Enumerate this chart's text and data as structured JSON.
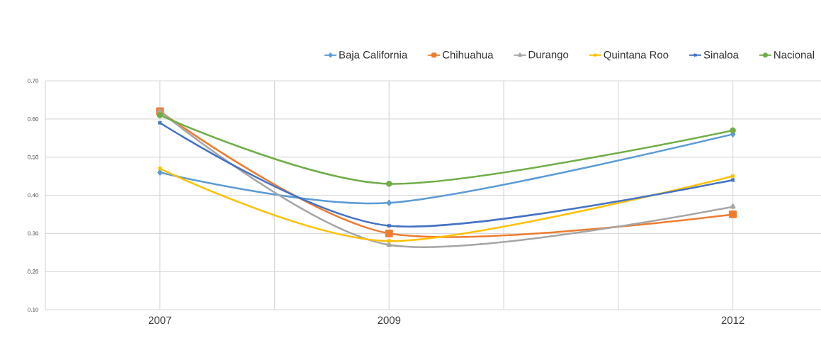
{
  "chart_data": {
    "type": "line",
    "x": [
      2007,
      2009,
      2012
    ],
    "series": [
      {
        "name": "Baja California",
        "color": "#5b9bd5",
        "marker": "diamond",
        "values": [
          0.46,
          0.38,
          0.56
        ]
      },
      {
        "name": "Chihuahua",
        "color": "#ed7d31",
        "marker": "square",
        "values": [
          0.62,
          0.3,
          0.35
        ]
      },
      {
        "name": "Durango",
        "color": "#a5a5a5",
        "marker": "triangle",
        "values": [
          0.62,
          0.27,
          0.37
        ]
      },
      {
        "name": "Quintana Roo",
        "color": "#ffc000",
        "marker": "cross",
        "values": [
          0.47,
          0.28,
          0.45
        ]
      },
      {
        "name": "Sinaloa",
        "color": "#4472c4",
        "marker": "cross",
        "values": [
          0.59,
          0.32,
          0.44
        ]
      },
      {
        "name": "Nacional",
        "color": "#70ad47",
        "marker": "circle",
        "values": [
          0.61,
          0.43,
          0.57
        ]
      }
    ],
    "xlim": [
      2006,
      2012.8
    ],
    "xticks": [
      {
        "value": 2006,
        "label": null
      },
      2007,
      {
        "value": 2008,
        "label": null
      },
      2009,
      {
        "value": 2010,
        "label": null
      },
      {
        "value": 2011,
        "label": null
      },
      2012
    ],
    "ylim": [
      0.1,
      0.7
    ],
    "yticks": [
      {
        "value": 0.1,
        "label": "0.10"
      },
      {
        "value": 0.2,
        "label": "0.20"
      },
      {
        "value": 0.3,
        "label": "0.30"
      },
      {
        "value": 0.4,
        "label": "0.40"
      },
      {
        "value": 0.5,
        "label": "0.50"
      },
      {
        "value": 0.6,
        "label": "0.60"
      },
      {
        "value": 0.7,
        "label": "0.70"
      }
    ],
    "grid": true,
    "legend": "top",
    "line_style": "solid"
  }
}
